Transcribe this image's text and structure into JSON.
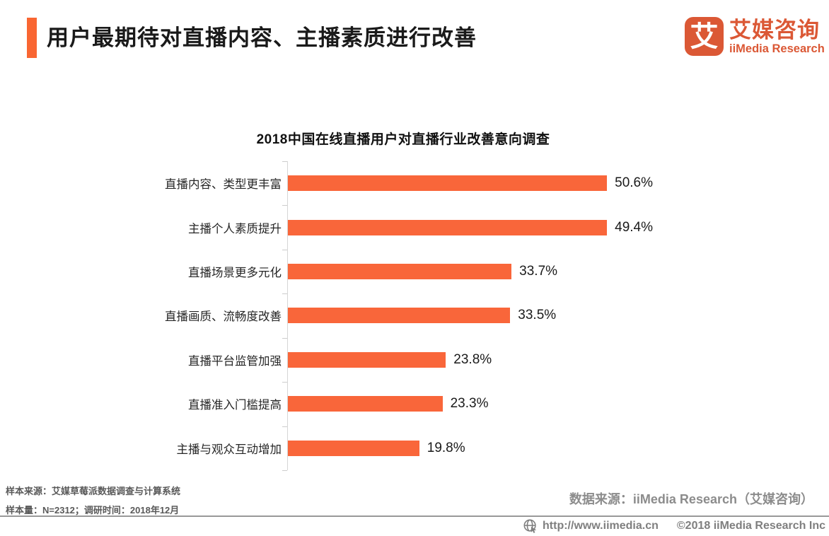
{
  "header": {
    "title": "用户最期待对直播内容、主播素质进行改善",
    "logo": {
      "mark": "艾",
      "name_cn": "艾媒咨询",
      "name_en": "iiMedia Research"
    }
  },
  "chart_data": {
    "type": "bar",
    "orientation": "horizontal",
    "title": "2018中国在线直播用户对直播行业改善意向调查",
    "categories": [
      "直播内容、类型更丰富",
      "主播个人素质提升",
      "直播场景更多元化",
      "直播画质、流畅度改善",
      "直播平台监管加强",
      "直播准入门槛提高",
      "主播与观众互动增加"
    ],
    "values": [
      50.6,
      49.4,
      33.7,
      33.5,
      23.8,
      23.3,
      19.8
    ],
    "value_labels": [
      "50.6%",
      "49.4%",
      "33.7%",
      "33.5%",
      "23.8%",
      "23.3%",
      "19.8%"
    ],
    "xlim": [
      0,
      55
    ],
    "bar_color": "#F9663A",
    "grid": false,
    "legend": null
  },
  "footer": {
    "sample_source": "样本来源：艾媒草莓派数据调查与计算系统",
    "sample_size": "样本量：N=2312；调研时间：2018年12月",
    "data_source": "数据来源：iiMedia Research（艾媒咨询）"
  },
  "bottom_bar": {
    "url": "http://www.iimedia.cn",
    "copyright": "©2018  iiMedia Research  Inc"
  },
  "colors": {
    "accent": "#F96632",
    "logo": "#DB5835",
    "bar": "#F9663A",
    "gray_text": "#8C8C8C"
  }
}
